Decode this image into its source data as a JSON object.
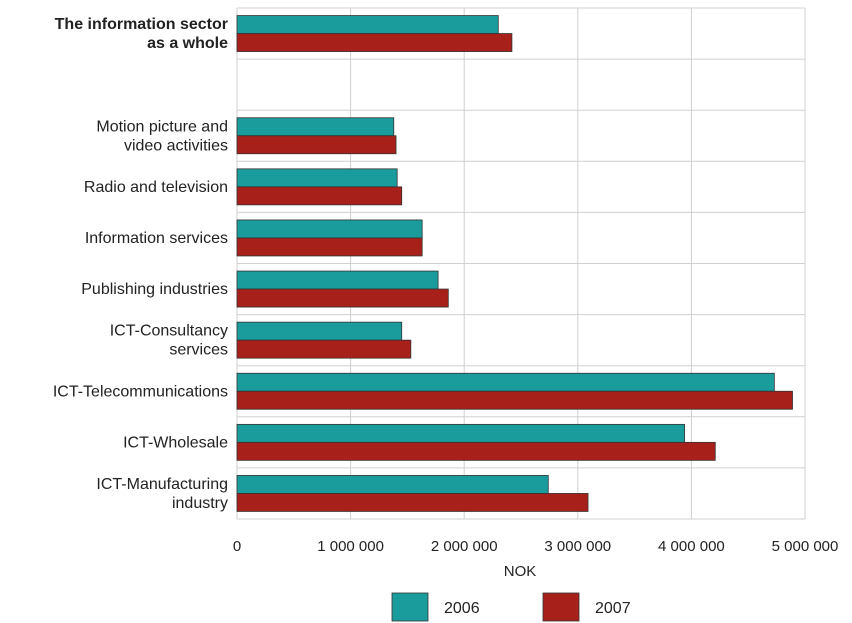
{
  "chart_data": {
    "type": "bar",
    "orientation": "horizontal",
    "categories": [
      {
        "label": [
          "The information sector",
          "as a whole"
        ],
        "bold": true
      },
      {
        "label": [],
        "bold": false
      },
      {
        "label": [
          "Motion picture and",
          "video activities"
        ],
        "bold": false
      },
      {
        "label": [
          "Radio and television"
        ],
        "bold": false
      },
      {
        "label": [
          "Information services"
        ],
        "bold": false
      },
      {
        "label": [
          "Publishing industries"
        ],
        "bold": false
      },
      {
        "label": [
          "ICT-Consultancy",
          "services"
        ],
        "bold": false
      },
      {
        "label": [
          "ICT-Telecommunications"
        ],
        "bold": false
      },
      {
        "label": [
          "ICT-Wholesale"
        ],
        "bold": false
      },
      {
        "label": [
          "ICT-Manufacturing",
          "industry"
        ],
        "bold": false
      }
    ],
    "series": [
      {
        "name": "2006",
        "color": "#1a9c9c",
        "values": [
          2300000,
          null,
          1380000,
          1410000,
          1630000,
          1770000,
          1450000,
          4730000,
          3940000,
          2740000
        ]
      },
      {
        "name": "2007",
        "color": "#a8201a",
        "values": [
          2420000,
          null,
          1400000,
          1450000,
          1630000,
          1860000,
          1530000,
          4890000,
          4210000,
          3090000
        ]
      }
    ],
    "xlabel": "NOK",
    "xlim": [
      0,
      5000000
    ],
    "xticks": [
      0,
      1000000,
      2000000,
      3000000,
      4000000,
      5000000
    ],
    "xtick_labels": [
      "0",
      "1 000 000",
      "2 000 000",
      "3 000 000",
      "4 000 000",
      "5 000 000"
    ],
    "grid": true,
    "legend_position": "bottom"
  }
}
